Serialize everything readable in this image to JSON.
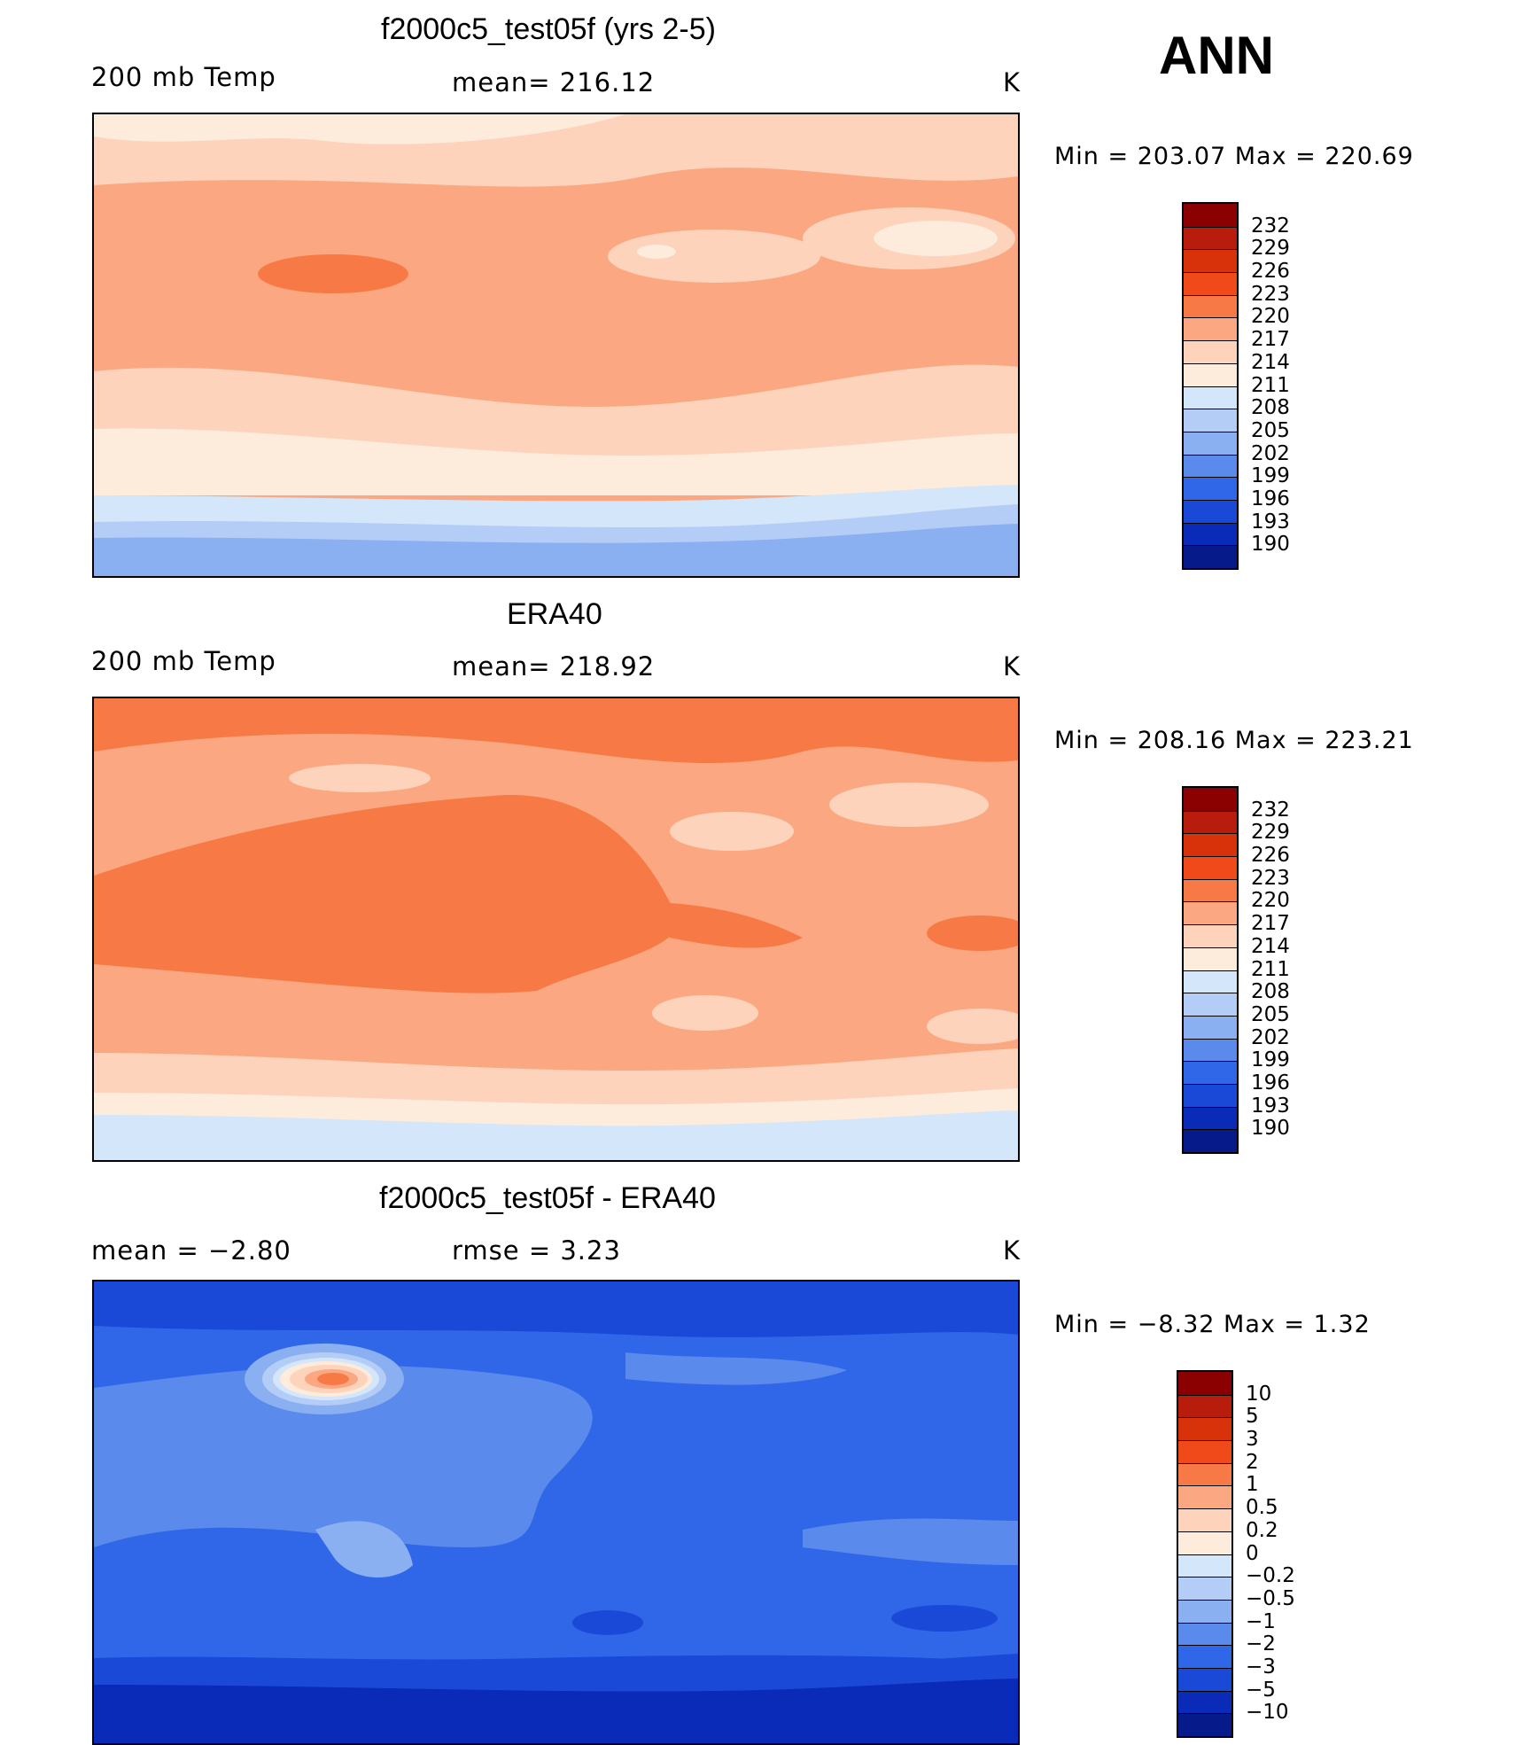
{
  "season": "ANN",
  "panels": [
    {
      "id": "model",
      "title": "f2000c5_test05f (yrs 2-5)",
      "left_label": "200 mb Temp",
      "center_label": "mean= 216.12",
      "unit": "K",
      "minmax": "Min  =  203.07  Max  =  220.69",
      "colorbar": {
        "levels": [
          "232",
          "229",
          "226",
          "223",
          "220",
          "217",
          "214",
          "211",
          "208",
          "205",
          "202",
          "199",
          "196",
          "193",
          "190"
        ],
        "colors": [
          "#8b0000",
          "#b81c0c",
          "#d8320a",
          "#f04a1a",
          "#f77a46",
          "#fba882",
          "#fdd3bb",
          "#fdebdc",
          "#d3e6fa",
          "#b4cdf7",
          "#8ab0f1",
          "#5a8aec",
          "#3067e8",
          "#1a49d8",
          "#0a2ab8",
          "#061a8a"
        ]
      }
    },
    {
      "id": "obs",
      "title": "ERA40",
      "left_label": "200 mb Temp",
      "center_label": "mean= 218.92",
      "unit": "K",
      "minmax": "Min  =  208.16  Max  =  223.21",
      "colorbar": {
        "levels": [
          "232",
          "229",
          "226",
          "223",
          "220",
          "217",
          "214",
          "211",
          "208",
          "205",
          "202",
          "199",
          "196",
          "193",
          "190"
        ],
        "colors": [
          "#8b0000",
          "#b81c0c",
          "#d8320a",
          "#f04a1a",
          "#f77a46",
          "#fba882",
          "#fdd3bb",
          "#fdebdc",
          "#d3e6fa",
          "#b4cdf7",
          "#8ab0f1",
          "#5a8aec",
          "#3067e8",
          "#1a49d8",
          "#0a2ab8",
          "#061a8a"
        ]
      }
    },
    {
      "id": "diff",
      "title": "f2000c5_test05f - ERA40",
      "left_label": "mean  =    −2.80",
      "center_label": "rmse  =     3.23",
      "unit": "K",
      "minmax": "Min  =    −8.32  Max  =     1.32",
      "colorbar": {
        "levels": [
          "10",
          "5",
          "3",
          "2",
          "1",
          "0.5",
          "0.2",
          "0",
          "−0.2",
          "−0.5",
          "−1",
          "−2",
          "−3",
          "−5",
          "−10"
        ],
        "colors": [
          "#8b0000",
          "#b81c0c",
          "#d8320a",
          "#f04a1a",
          "#f77a46",
          "#fba882",
          "#fdd3bb",
          "#fdebdc",
          "#d3e6fa",
          "#b4cdf7",
          "#8ab0f1",
          "#5a8aec",
          "#3067e8",
          "#1a49d8",
          "#0a2ab8",
          "#061a8a"
        ]
      }
    }
  ]
}
